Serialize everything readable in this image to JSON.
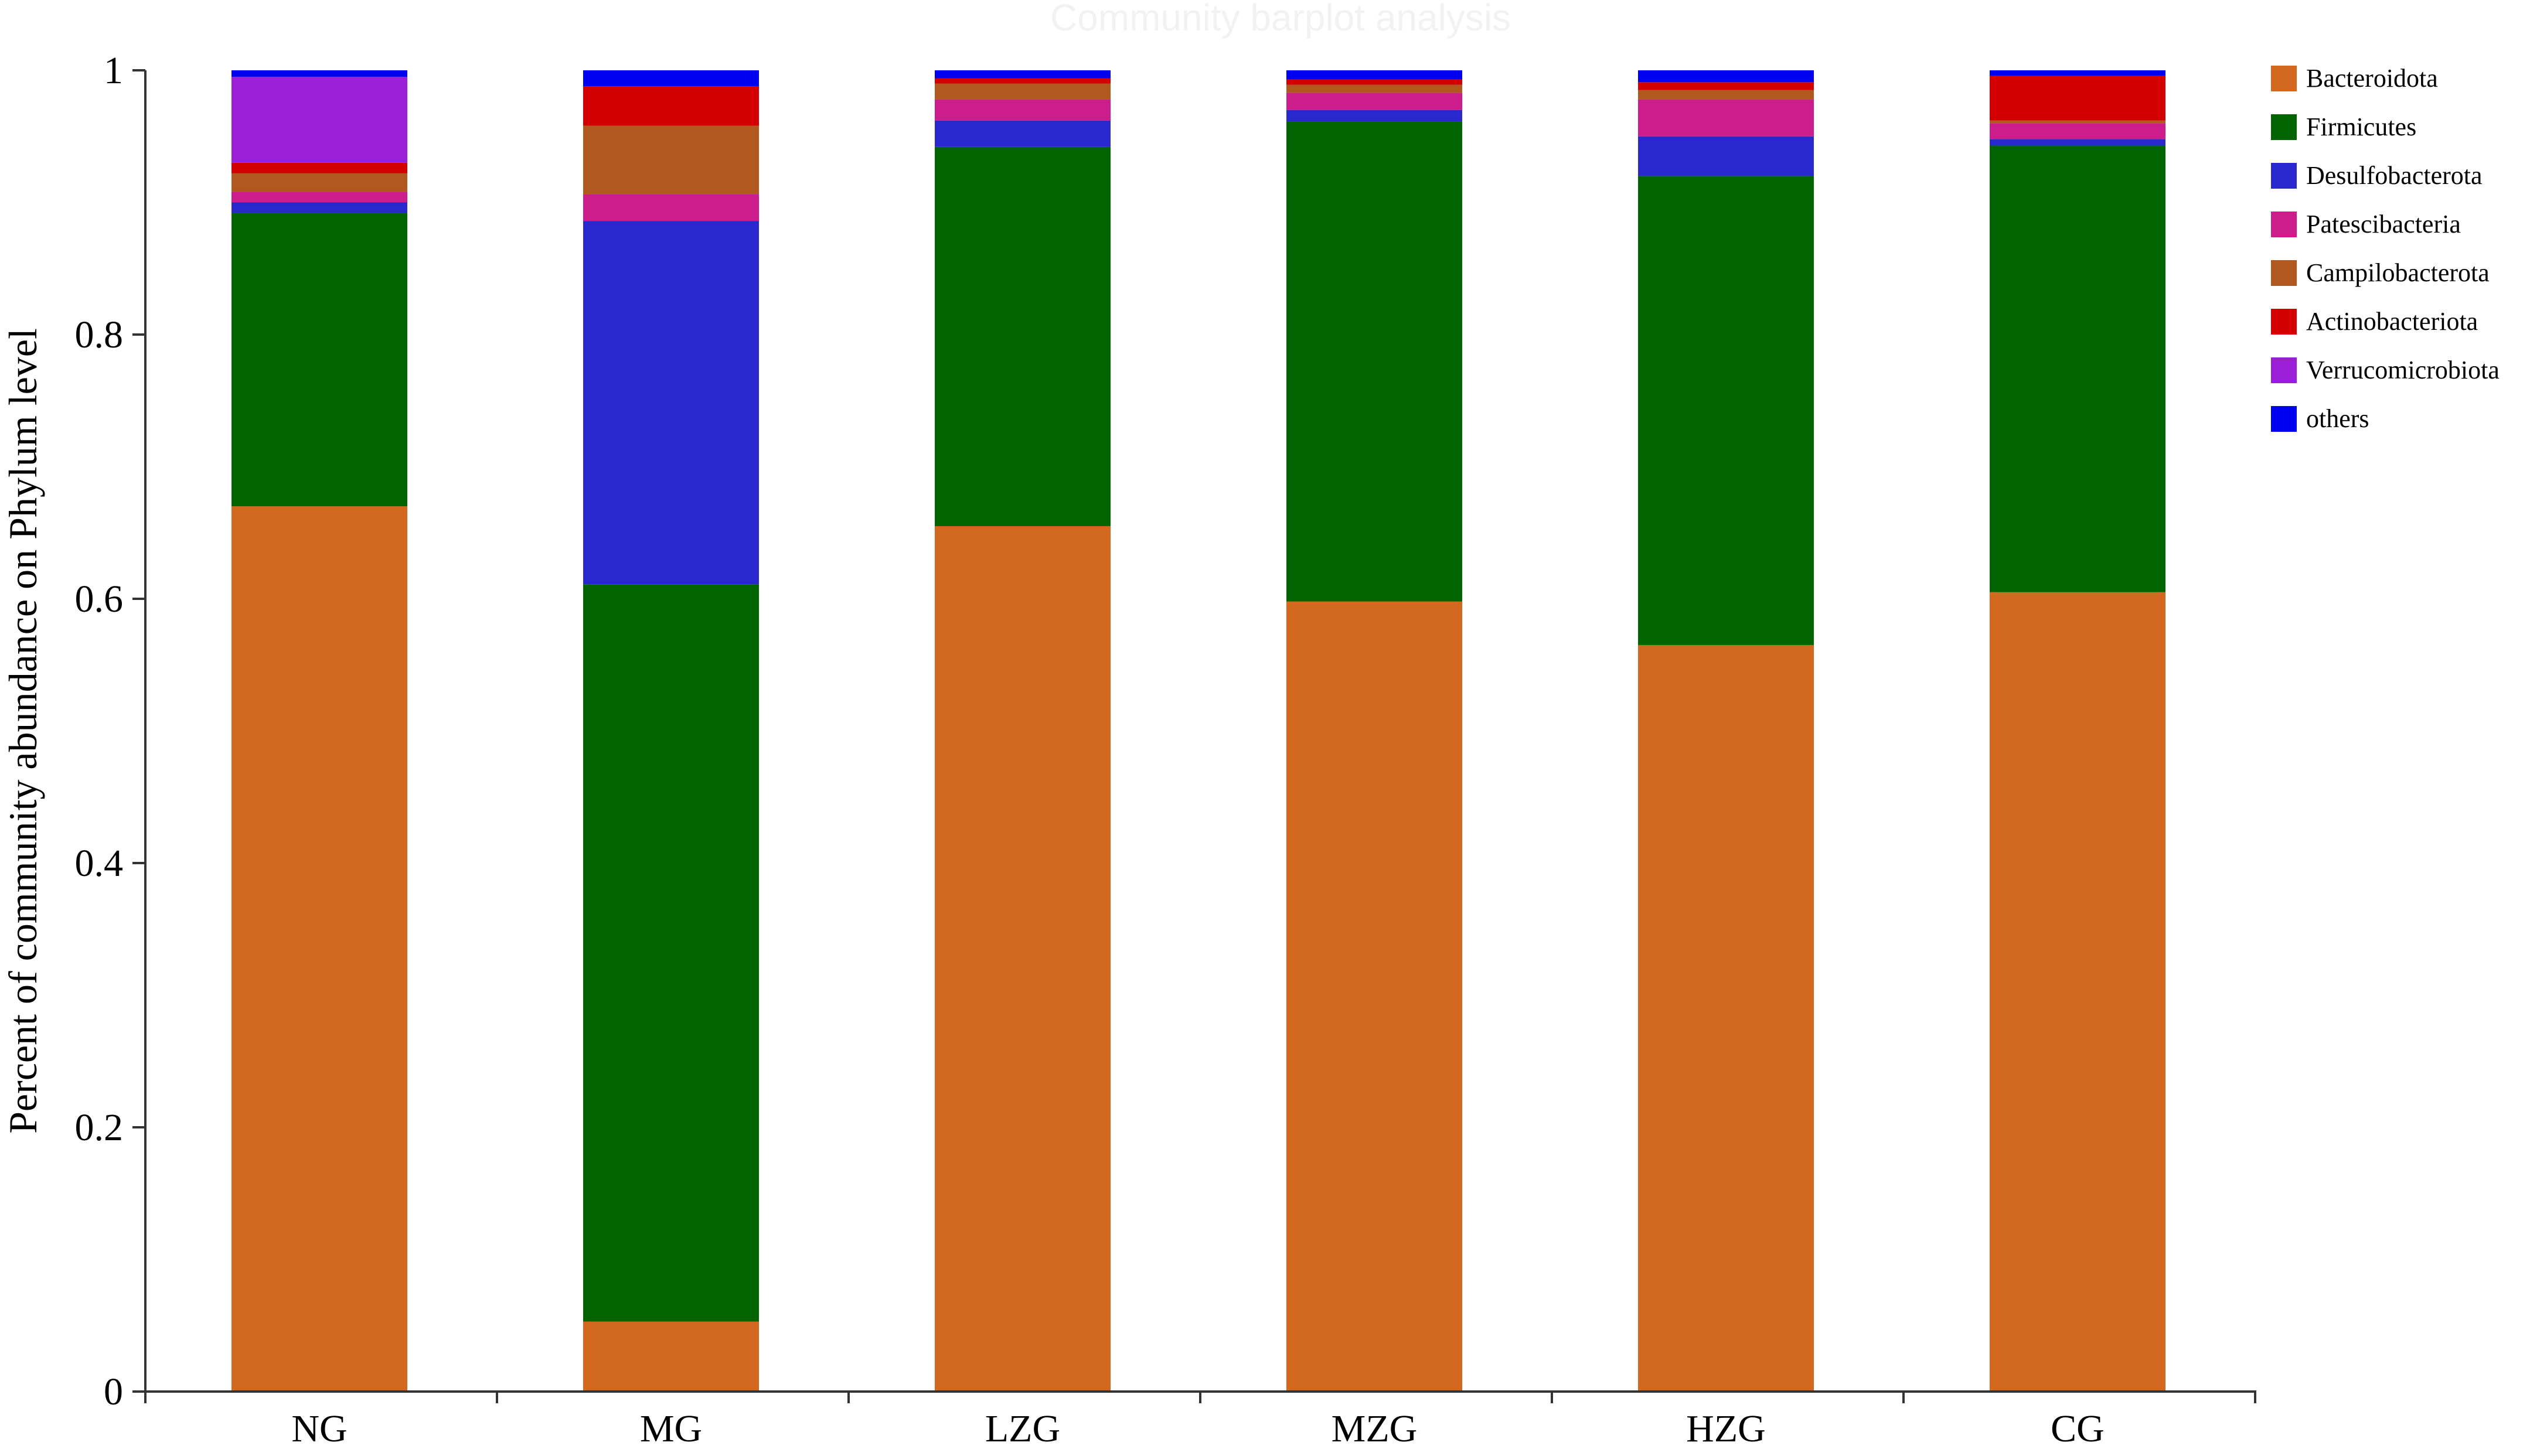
{
  "chart_data": {
    "type": "bar",
    "stacked": true,
    "title": "Community barplot analysis",
    "xlabel": "",
    "ylabel": "Percent of community abundance on Phylum level",
    "ylim": [
      0,
      1
    ],
    "yticks": [
      "0",
      "0.2",
      "0.4",
      "0.6",
      "0.8",
      "1"
    ],
    "ytick_values": [
      0,
      0.2,
      0.4,
      0.6,
      0.8,
      1
    ],
    "categories": [
      "NG",
      "MG",
      "LZG",
      "MZG",
      "HZG",
      "CG"
    ],
    "legend_position": "right",
    "grid": false,
    "series": [
      {
        "name": "Bacteroidota",
        "color": "#D2691E",
        "values": [
          0.67,
          0.053,
          0.655,
          0.598,
          0.565,
          0.605
        ]
      },
      {
        "name": "Firmicutes",
        "color": "#006400",
        "values": [
          0.222,
          0.558,
          0.287,
          0.363,
          0.355,
          0.338
        ]
      },
      {
        "name": "Desulfobacterota",
        "color": "#2828CD",
        "values": [
          0.008,
          0.275,
          0.02,
          0.009,
          0.03,
          0.005
        ]
      },
      {
        "name": "Patescibacteria",
        "color": "#CD1C8C",
        "values": [
          0.008,
          0.02,
          0.016,
          0.013,
          0.028,
          0.012
        ]
      },
      {
        "name": "Campilobacterota",
        "color": "#B0581E",
        "values": [
          0.014,
          0.052,
          0.012,
          0.006,
          0.007,
          0.002
        ]
      },
      {
        "name": "Actinobacteriota",
        "color": "#D20000",
        "values": [
          0.008,
          0.03,
          0.004,
          0.004,
          0.006,
          0.034
        ]
      },
      {
        "name": "Verrucomicrobiota",
        "color": "#9B1FD6",
        "values": [
          0.065,
          0.0,
          0.0,
          0.0,
          0.0,
          0.0
        ]
      },
      {
        "name": "others",
        "color": "#0000F0",
        "values": [
          0.005,
          0.012,
          0.006,
          0.007,
          0.009,
          0.004
        ]
      }
    ]
  }
}
